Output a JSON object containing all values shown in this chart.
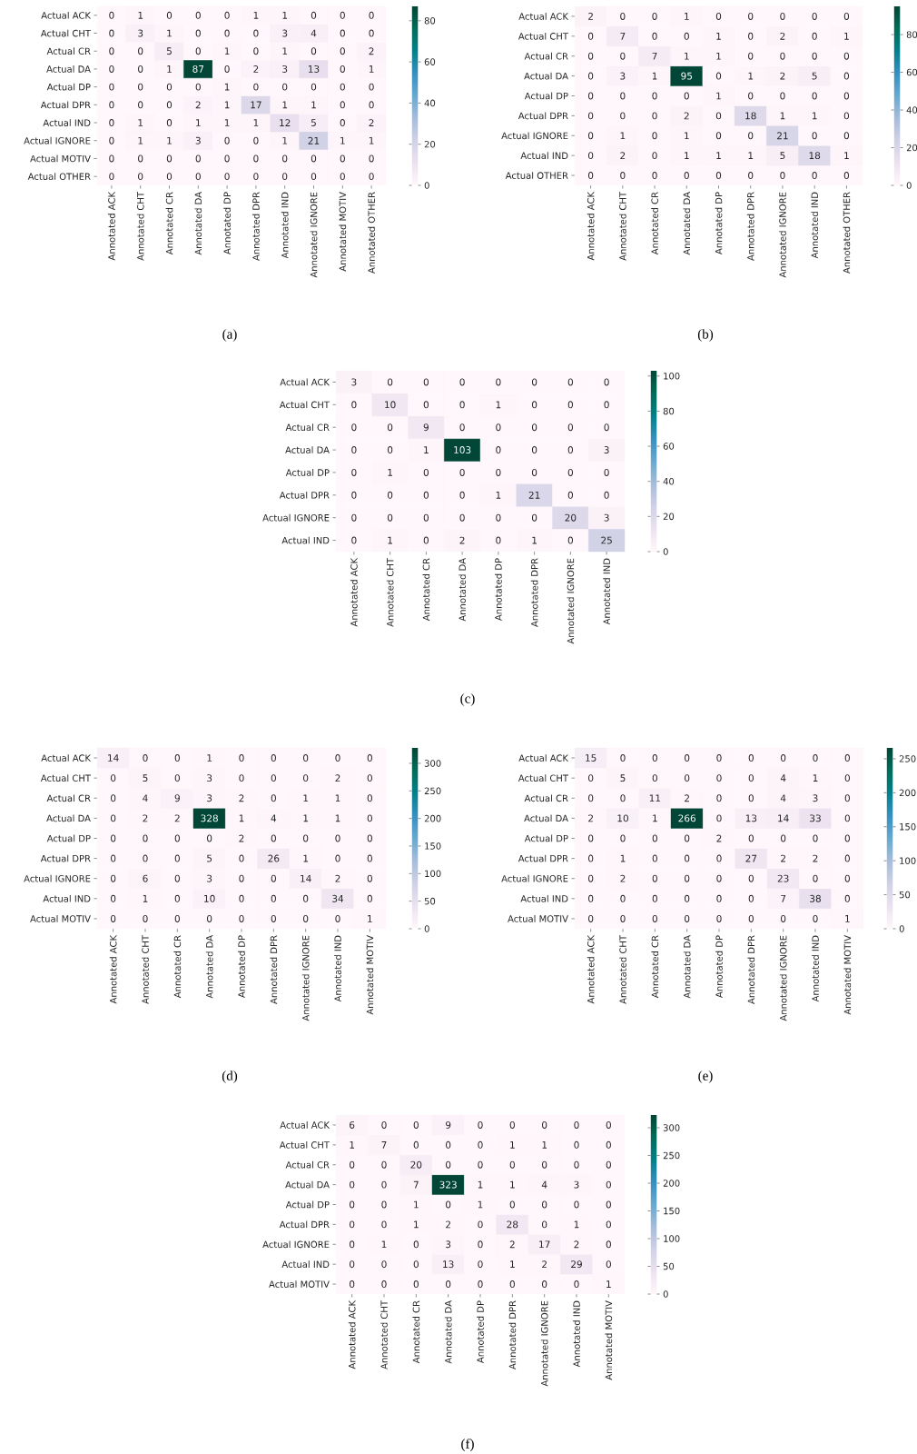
{
  "chart_data": [
    {
      "type": "heatmap",
      "annotations": [
        "(a)"
      ],
      "data_labels": true,
      "categories": [
        "Annotated ACK",
        "Annotated CHT",
        "Annotated CR",
        "Annotated DA",
        "Annotated DP",
        "Annotated DPR",
        "Annotated IND",
        "Annotated IGNORE",
        "Annotated MOTIV",
        "Annotated OTHER"
      ],
      "y_categories": [
        "Actual ACK",
        "Actual CHT",
        "Actual CR",
        "Actual DA",
        "Actual DP",
        "Actual DPR",
        "Actual IND",
        "Actual IGNORE",
        "Actual MOTIV",
        "Actual OTHER"
      ],
      "cells": [
        [
          0,
          1,
          0,
          0,
          0,
          1,
          1,
          0,
          0,
          0
        ],
        [
          0,
          3,
          1,
          0,
          0,
          0,
          3,
          4,
          0,
          0
        ],
        [
          0,
          0,
          5,
          0,
          1,
          0,
          1,
          0,
          0,
          2
        ],
        [
          0,
          0,
          1,
          87,
          0,
          2,
          3,
          13,
          0,
          1
        ],
        [
          0,
          0,
          0,
          0,
          1,
          0,
          0,
          0,
          0,
          0
        ],
        [
          0,
          0,
          0,
          2,
          1,
          17,
          1,
          1,
          0,
          0
        ],
        [
          0,
          1,
          0,
          1,
          1,
          1,
          12,
          5,
          0,
          2
        ],
        [
          0,
          1,
          1,
          3,
          0,
          0,
          1,
          21,
          1,
          1
        ],
        [
          0,
          0,
          0,
          0,
          0,
          0,
          0,
          0,
          0,
          0
        ],
        [
          0,
          0,
          0,
          0,
          0,
          0,
          0,
          0,
          0,
          0
        ]
      ],
      "clim": [
        0,
        87
      ],
      "cticks": [
        0,
        20,
        40,
        60,
        80
      ]
    },
    {
      "type": "heatmap",
      "annotations": [
        "(b)"
      ],
      "data_labels": true,
      "categories": [
        "Annotated ACK",
        "Annotated CHT",
        "Annotated CR",
        "Annotated DA",
        "Annotated DP",
        "Annotated DPR",
        "Annotated IGNORE",
        "Annotated IND",
        "Annotated OTHER"
      ],
      "y_categories": [
        "Actual ACK",
        "Actual CHT",
        "Actual CR",
        "Actual DA",
        "Actual DP",
        "Actual DPR",
        "Actual IGNORE",
        "Actual IND",
        "Actual OTHER"
      ],
      "cells": [
        [
          2,
          0,
          0,
          1,
          0,
          0,
          0,
          0,
          0
        ],
        [
          0,
          7,
          0,
          0,
          1,
          0,
          2,
          0,
          1
        ],
        [
          0,
          0,
          7,
          1,
          1,
          0,
          0,
          0,
          0
        ],
        [
          0,
          3,
          1,
          95,
          0,
          1,
          2,
          5,
          0
        ],
        [
          0,
          0,
          0,
          0,
          1,
          0,
          0,
          0,
          0
        ],
        [
          0,
          0,
          0,
          2,
          0,
          18,
          1,
          1,
          0
        ],
        [
          0,
          1,
          0,
          1,
          0,
          0,
          21,
          0,
          0
        ],
        [
          0,
          2,
          0,
          1,
          1,
          1,
          5,
          18,
          1
        ],
        [
          0,
          0,
          0,
          0,
          0,
          0,
          0,
          0,
          0
        ]
      ],
      "clim": [
        0,
        95
      ],
      "cticks": [
        0,
        20,
        40,
        60,
        80
      ]
    },
    {
      "type": "heatmap",
      "annotations": [
        "(c)"
      ],
      "data_labels": true,
      "categories": [
        "Annotated ACK",
        "Annotated CHT",
        "Annotated CR",
        "Annotated DA",
        "Annotated DP",
        "Annotated DPR",
        "Annotated IGNORE",
        "Annotated IND"
      ],
      "y_categories": [
        "Actual ACK",
        "Actual CHT",
        "Actual CR",
        "Actual DA",
        "Actual DP",
        "Actual DPR",
        "Actual IGNORE",
        "Actual IND"
      ],
      "cells": [
        [
          3,
          0,
          0,
          0,
          0,
          0,
          0,
          0
        ],
        [
          0,
          10,
          0,
          0,
          1,
          0,
          0,
          0
        ],
        [
          0,
          0,
          9,
          0,
          0,
          0,
          0,
          0
        ],
        [
          0,
          0,
          1,
          103,
          0,
          0,
          0,
          3
        ],
        [
          0,
          1,
          0,
          0,
          0,
          0,
          0,
          0
        ],
        [
          0,
          0,
          0,
          0,
          1,
          21,
          0,
          0
        ],
        [
          0,
          0,
          0,
          0,
          0,
          0,
          20,
          3
        ],
        [
          0,
          1,
          0,
          2,
          0,
          1,
          0,
          25
        ]
      ],
      "clim": [
        0,
        103
      ],
      "cticks": [
        0,
        20,
        40,
        60,
        80,
        100
      ]
    },
    {
      "type": "heatmap",
      "annotations": [
        "(d)"
      ],
      "data_labels": true,
      "categories": [
        "Annotated ACK",
        "Annotated CHT",
        "Annotated CR",
        "Annotated DA",
        "Annotated DP",
        "Annotated DPR",
        "Annotated IGNORE",
        "Annotated IND",
        "Annotated MOTIV"
      ],
      "y_categories": [
        "Actual ACK",
        "Actual CHT",
        "Actual CR",
        "Actual DA",
        "Actual DP",
        "Actual DPR",
        "Actual IGNORE",
        "Actual IND",
        "Actual MOTIV"
      ],
      "cells": [
        [
          14,
          0,
          0,
          1,
          0,
          0,
          0,
          0,
          0
        ],
        [
          0,
          5,
          0,
          3,
          0,
          0,
          0,
          2,
          0
        ],
        [
          0,
          4,
          9,
          3,
          2,
          0,
          1,
          1,
          0
        ],
        [
          0,
          2,
          2,
          328,
          1,
          4,
          1,
          1,
          0
        ],
        [
          0,
          0,
          0,
          0,
          2,
          0,
          0,
          0,
          0
        ],
        [
          0,
          0,
          0,
          5,
          0,
          26,
          1,
          0,
          0
        ],
        [
          0,
          6,
          0,
          3,
          0,
          0,
          14,
          2,
          0
        ],
        [
          0,
          1,
          0,
          10,
          0,
          0,
          0,
          34,
          0
        ],
        [
          0,
          0,
          0,
          0,
          0,
          0,
          0,
          0,
          1
        ]
      ],
      "clim": [
        0,
        328
      ],
      "cticks": [
        0,
        50,
        100,
        150,
        200,
        250,
        300
      ]
    },
    {
      "type": "heatmap",
      "annotations": [
        "(e)"
      ],
      "data_labels": true,
      "categories": [
        "Annotated ACK",
        "Annotated CHT",
        "Annotated CR",
        "Annotated DA",
        "Annotated DP",
        "Annotated DPR",
        "Annotated IGNORE",
        "Annotated IND",
        "Annotated MOTIV"
      ],
      "y_categories": [
        "Actual ACK",
        "Actual CHT",
        "Actual CR",
        "Actual DA",
        "Actual DP",
        "Actual DPR",
        "Actual IGNORE",
        "Actual IND",
        "Actual MOTIV"
      ],
      "cells": [
        [
          15,
          0,
          0,
          0,
          0,
          0,
          0,
          0,
          0
        ],
        [
          0,
          5,
          0,
          0,
          0,
          0,
          4,
          1,
          0
        ],
        [
          0,
          0,
          11,
          2,
          0,
          0,
          4,
          3,
          0
        ],
        [
          2,
          10,
          1,
          266,
          0,
          13,
          14,
          33,
          0
        ],
        [
          0,
          0,
          0,
          0,
          2,
          0,
          0,
          0,
          0
        ],
        [
          0,
          1,
          0,
          0,
          0,
          27,
          2,
          2,
          0
        ],
        [
          0,
          2,
          0,
          0,
          0,
          0,
          23,
          0,
          0
        ],
        [
          0,
          0,
          0,
          0,
          0,
          0,
          7,
          38,
          0
        ],
        [
          0,
          0,
          0,
          0,
          0,
          0,
          0,
          0,
          1
        ]
      ],
      "clim": [
        0,
        266
      ],
      "cticks": [
        0,
        50,
        100,
        150,
        200,
        250
      ]
    },
    {
      "type": "heatmap",
      "annotations": [
        "(f)"
      ],
      "data_labels": true,
      "categories": [
        "Annotated ACK",
        "Annotated CHT",
        "Annotated CR",
        "Annotated DA",
        "Annotated DP",
        "Annotated DPR",
        "Annotated IGNORE",
        "Annotated IND",
        "Annotated MOTIV"
      ],
      "y_categories": [
        "Actual ACK",
        "Actual CHT",
        "Actual CR",
        "Actual DA",
        "Actual DP",
        "Actual DPR",
        "Actual IGNORE",
        "Actual IND",
        "Actual MOTIV"
      ],
      "cells": [
        [
          6,
          0,
          0,
          9,
          0,
          0,
          0,
          0,
          0
        ],
        [
          1,
          7,
          0,
          0,
          0,
          1,
          1,
          0,
          0
        ],
        [
          0,
          0,
          20,
          0,
          0,
          0,
          0,
          0,
          0
        ],
        [
          0,
          0,
          7,
          323,
          1,
          1,
          4,
          3,
          0
        ],
        [
          0,
          0,
          1,
          0,
          1,
          0,
          0,
          0,
          0
        ],
        [
          0,
          0,
          1,
          2,
          0,
          28,
          0,
          1,
          0
        ],
        [
          0,
          1,
          0,
          3,
          0,
          2,
          17,
          2,
          0
        ],
        [
          0,
          0,
          0,
          13,
          0,
          1,
          2,
          29,
          0
        ],
        [
          0,
          0,
          0,
          0,
          0,
          0,
          0,
          0,
          1
        ]
      ],
      "clim": [
        0,
        323
      ],
      "cticks": [
        0,
        50,
        100,
        150,
        200,
        250,
        300
      ]
    }
  ]
}
